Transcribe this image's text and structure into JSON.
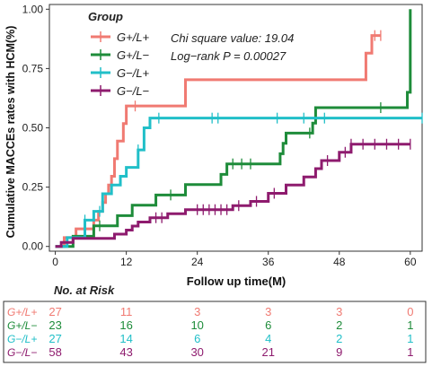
{
  "chart_data": {
    "type": "line",
    "ylabel": "Cumulative MACCEs rates with HCM(%)",
    "xlabel": "Follow up time(M)",
    "x_ticks": [
      0,
      12,
      24,
      36,
      48,
      60
    ],
    "y_ticks": [
      "0.00",
      "0.25",
      "0.50",
      "0.75",
      "1.00"
    ],
    "xlim": [
      -1,
      62
    ],
    "ylim": [
      -0.02,
      1.02
    ],
    "legend": {
      "title": "Group",
      "placement": "top-left",
      "stats_line1": "Chi square value: 19.04",
      "stats_line2": "Log−rank P = 0.00027"
    },
    "series": [
      {
        "name": "G+/L+",
        "color": "#f07a72",
        "steps": [
          [
            0,
            0
          ],
          [
            1.5,
            0.037
          ],
          [
            3.5,
            0.074
          ],
          [
            6.5,
            0.111
          ],
          [
            7.3,
            0.148
          ],
          [
            8,
            0.185
          ],
          [
            8.5,
            0.222
          ],
          [
            9,
            0.259
          ],
          [
            9.5,
            0.296
          ],
          [
            10,
            0.37
          ],
          [
            10.5,
            0.444
          ],
          [
            11.5,
            0.518
          ],
          [
            12,
            0.592
          ],
          [
            22,
            0.703
          ],
          [
            52.5,
            0.815
          ],
          [
            53.5,
            0.889
          ],
          [
            55,
            0.889
          ]
        ],
        "censors": [
          [
            13.5,
            0.592
          ],
          [
            54,
            0.889
          ],
          [
            55,
            0.889
          ]
        ]
      },
      {
        "name": "G+/L−",
        "color": "#1e8c3a",
        "steps": [
          [
            0,
            0
          ],
          [
            3,
            0.043
          ],
          [
            6.5,
            0.087
          ],
          [
            10.5,
            0.13
          ],
          [
            13,
            0.174
          ],
          [
            17,
            0.217
          ],
          [
            22,
            0.261
          ],
          [
            28,
            0.304
          ],
          [
            29,
            0.348
          ],
          [
            38,
            0.391
          ],
          [
            38.5,
            0.435
          ],
          [
            39,
            0.478
          ],
          [
            43.5,
            0.52
          ],
          [
            44,
            0.585
          ],
          [
            59.5,
            0.65
          ],
          [
            60,
            1.0
          ]
        ],
        "censors": [
          [
            7.5,
            0.087
          ],
          [
            19.5,
            0.217
          ],
          [
            30,
            0.348
          ],
          [
            31.5,
            0.348
          ],
          [
            33,
            0.348
          ],
          [
            43,
            0.478
          ],
          [
            55,
            0.585
          ]
        ]
      },
      {
        "name": "G−/L+",
        "color": "#21bfc8",
        "steps": [
          [
            0,
            0
          ],
          [
            2,
            0.037
          ],
          [
            5,
            0.111
          ],
          [
            6.5,
            0.148
          ],
          [
            8,
            0.222
          ],
          [
            9.5,
            0.259
          ],
          [
            11,
            0.296
          ],
          [
            12,
            0.333
          ],
          [
            14,
            0.407
          ],
          [
            15,
            0.5
          ],
          [
            16,
            0.541
          ],
          [
            62,
            0.541
          ]
        ],
        "censors": [
          [
            5,
            0.111
          ],
          [
            7.5,
            0.148
          ],
          [
            14,
            0.407
          ],
          [
            17.5,
            0.541
          ],
          [
            26.5,
            0.541
          ],
          [
            27.5,
            0.541
          ],
          [
            37.5,
            0.541
          ],
          [
            42,
            0.541
          ],
          [
            45.5,
            0.541
          ],
          [
            62,
            0.541
          ]
        ]
      },
      {
        "name": "G−/L−",
        "color": "#8e1b6e",
        "steps": [
          [
            0,
            0
          ],
          [
            1,
            0.017
          ],
          [
            3,
            0.034
          ],
          [
            10,
            0.052
          ],
          [
            12,
            0.069
          ],
          [
            13,
            0.086
          ],
          [
            14,
            0.103
          ],
          [
            16,
            0.121
          ],
          [
            19,
            0.138
          ],
          [
            22,
            0.155
          ],
          [
            30,
            0.172
          ],
          [
            33,
            0.19
          ],
          [
            36,
            0.224
          ],
          [
            39,
            0.259
          ],
          [
            42,
            0.293
          ],
          [
            44,
            0.328
          ],
          [
            45,
            0.362
          ],
          [
            48,
            0.397
          ],
          [
            50,
            0.431
          ],
          [
            60,
            0.431
          ]
        ],
        "censors": [
          [
            17,
            0.121
          ],
          [
            18,
            0.121
          ],
          [
            24,
            0.155
          ],
          [
            25,
            0.155
          ],
          [
            26,
            0.155
          ],
          [
            27,
            0.155
          ],
          [
            28,
            0.155
          ],
          [
            29,
            0.155
          ],
          [
            31,
            0.172
          ],
          [
            34,
            0.19
          ],
          [
            37,
            0.224
          ],
          [
            46,
            0.362
          ],
          [
            49,
            0.397
          ],
          [
            50,
            0.431
          ],
          [
            52,
            0.431
          ],
          [
            54,
            0.431
          ],
          [
            56,
            0.431
          ],
          [
            58,
            0.431
          ],
          [
            60,
            0.431
          ]
        ]
      }
    ],
    "risk_table": {
      "title": "No. at Risk",
      "time_points": [
        0,
        12,
        24,
        36,
        48,
        60
      ],
      "rows": [
        {
          "label": "G+/L+",
          "color": "#f07a72",
          "values": [
            "27",
            "11",
            "3",
            "3",
            "3",
            "0"
          ]
        },
        {
          "label": "G+/L−",
          "color": "#1e8c3a",
          "values": [
            "23",
            "16",
            "10",
            "6",
            "2",
            "1"
          ]
        },
        {
          "label": "G−/L+",
          "color": "#21bfc8",
          "values": [
            "27",
            "14",
            "6",
            "4",
            "2",
            "1"
          ]
        },
        {
          "label": "G−/L−",
          "color": "#8e1b6e",
          "values": [
            "58",
            "43",
            "30",
            "21",
            "9",
            "1"
          ]
        }
      ]
    }
  }
}
